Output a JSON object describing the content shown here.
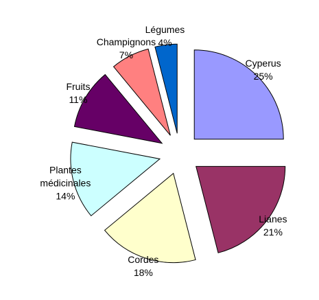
{
  "chart_data": {
    "type": "pie",
    "categories": [
      "Cyperus",
      "Lianes",
      "Cordes",
      "Plantes médicinales",
      "Fruits",
      "Champignons",
      "Légumes"
    ],
    "values": [
      25,
      21,
      18,
      14,
      11,
      7,
      4
    ],
    "value_labels": [
      "25%",
      "21%",
      "18%",
      "14%",
      "11%",
      "7%",
      "4%"
    ],
    "colors": [
      "#9999ff",
      "#993366",
      "#ffffcc",
      "#ccffff",
      "#660066",
      "#ff8080",
      "#0066cc"
    ]
  }
}
